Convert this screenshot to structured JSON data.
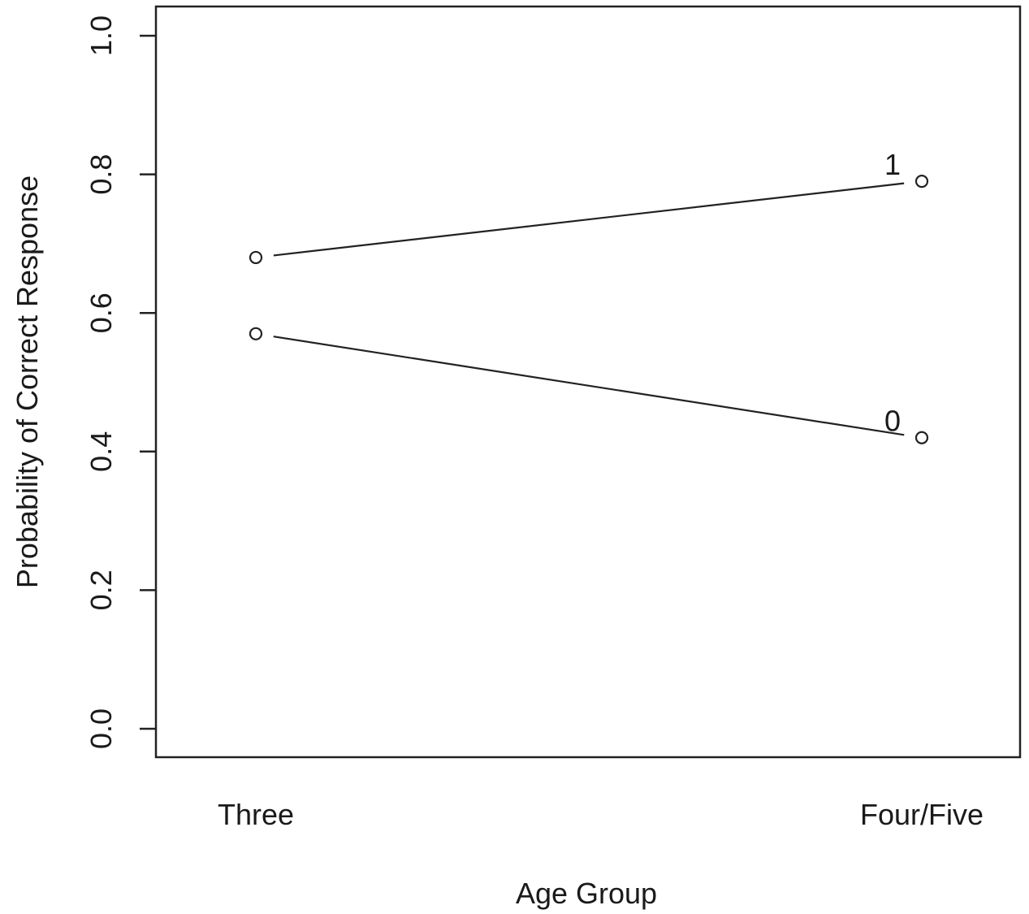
{
  "chart_data": {
    "type": "line",
    "title": "",
    "xlabel": "Age Group",
    "ylabel": "Probability of Correct Response",
    "categories": [
      "Three",
      "Four/Five"
    ],
    "ylim": [
      0,
      1
    ],
    "yticks": [
      "0.0",
      "0.2",
      "0.4",
      "0.6",
      "0.8",
      "1.0"
    ],
    "grid": false,
    "series": [
      {
        "name": "1",
        "values": [
          0.68,
          0.79
        ]
      },
      {
        "name": "0",
        "values": [
          0.57,
          0.42
        ]
      }
    ]
  }
}
